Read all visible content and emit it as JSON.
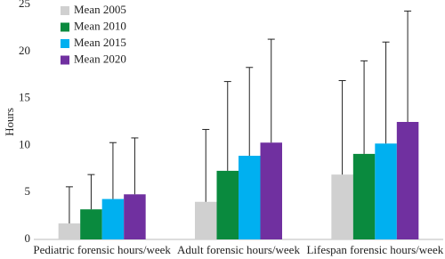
{
  "chart_data": {
    "type": "bar",
    "y_label": "Hours",
    "categories": [
      "Pediatric forensic hours/week",
      "Adult forensic hours/week",
      "Lifespan forensic hours/week"
    ],
    "series": [
      {
        "name": "Mean 2005",
        "color": "#d0d0d0",
        "values": [
          1.7,
          4.0,
          6.9
        ],
        "errors": [
          3.9,
          7.7,
          10.0
        ]
      },
      {
        "name": "Mean 2010",
        "color": "#0a8a3e",
        "values": [
          3.2,
          7.3,
          9.1
        ],
        "errors": [
          3.7,
          9.5,
          9.9
        ]
      },
      {
        "name": "Mean 2015",
        "color": "#00b0f0",
        "values": [
          4.3,
          8.9,
          10.2
        ],
        "errors": [
          6.0,
          9.4,
          10.8
        ]
      },
      {
        "name": "Mean 2020",
        "color": "#7030a0",
        "values": [
          4.8,
          10.3,
          12.5
        ],
        "errors": [
          6.0,
          11.0,
          11.8
        ]
      }
    ],
    "ylim": [
      0,
      25
    ],
    "yticks": [
      0,
      5,
      10,
      15,
      20,
      25
    ],
    "legend": "upper left"
  }
}
